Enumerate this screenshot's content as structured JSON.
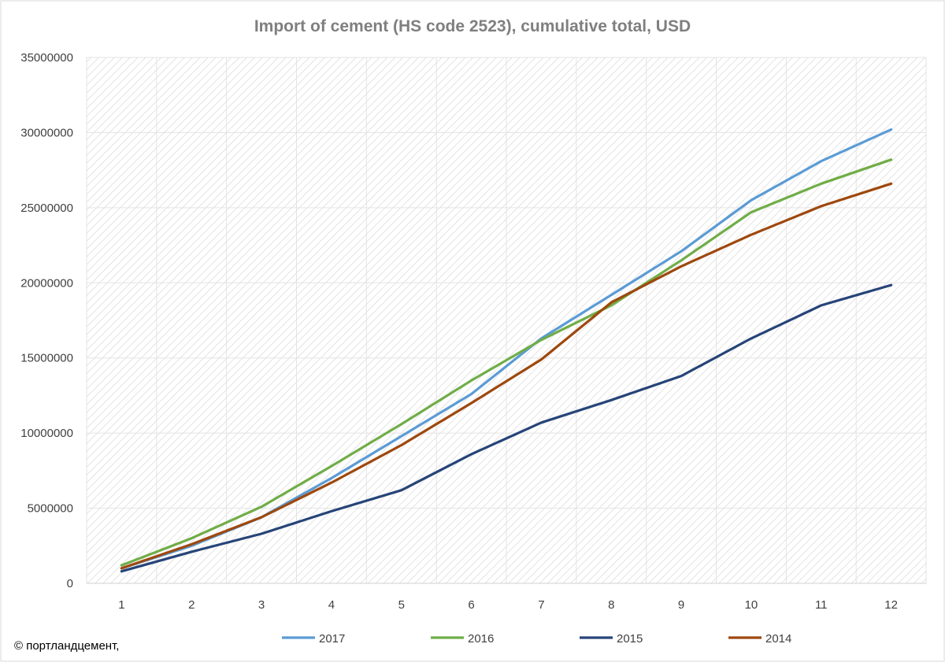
{
  "chart_data": {
    "type": "line",
    "title": "Import of cement (HS code 2523), cumulative total, USD",
    "xlabel": "",
    "ylabel": "",
    "categories": [
      "1",
      "2",
      "3",
      "4",
      "5",
      "6",
      "7",
      "8",
      "9",
      "10",
      "11",
      "12"
    ],
    "ylim": [
      0,
      35000000
    ],
    "yticks": [
      "0",
      "5000000",
      "10000000",
      "15000000",
      "20000000",
      "25000000",
      "30000000",
      "35000000"
    ],
    "grid": true,
    "legend_position": "bottom",
    "series": [
      {
        "name": "2017",
        "color": "#5b9bd5",
        "values": [
          1000000,
          2500000,
          4400000,
          7000000,
          9800000,
          12600000,
          16300000,
          19200000,
          22100000,
          25500000,
          28100000,
          30200000
        ]
      },
      {
        "name": "2016",
        "color": "#70ad47",
        "values": [
          1200000,
          3000000,
          5100000,
          7800000,
          10600000,
          13500000,
          16200000,
          18500000,
          21500000,
          24700000,
          26600000,
          28200000
        ]
      },
      {
        "name": "2015",
        "color": "#264478",
        "values": [
          800000,
          2100000,
          3300000,
          4800000,
          6200000,
          8600000,
          10700000,
          12200000,
          13800000,
          16300000,
          18500000,
          19850000
        ]
      },
      {
        "name": "2014",
        "color": "#9e480e",
        "values": [
          1000000,
          2600000,
          4400000,
          6700000,
          9200000,
          12000000,
          14900000,
          18700000,
          21100000,
          23200000,
          25100000,
          26600000
        ]
      }
    ]
  },
  "copyright": "© портландцемент,"
}
